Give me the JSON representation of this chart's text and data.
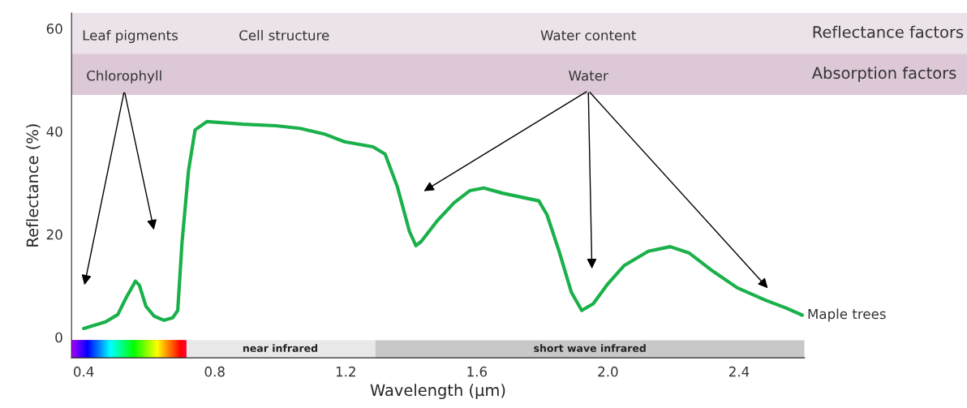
{
  "chart_data": {
    "type": "line",
    "xlabel": "Wavelength (µm)",
    "ylabel": "Reflectance (%)",
    "xlim": [
      0.363,
      2.6
    ],
    "ylim": [
      -4,
      63
    ],
    "xticks": [
      0.4,
      0.8,
      1.2,
      1.6,
      {
        "value": 2.0,
        "label": "2.0"
      },
      2.4
    ],
    "yticks": [
      0,
      20,
      40,
      60
    ],
    "grid": false,
    "legend": false,
    "marker": "none",
    "line_style": "solid",
    "series": [
      {
        "name": "Maple trees",
        "color": "#1ab04a",
        "x": [
          0.4,
          0.467,
          0.504,
          0.529,
          0.558,
          0.57,
          0.59,
          0.615,
          0.645,
          0.672,
          0.687,
          0.7,
          0.72,
          0.74,
          0.776,
          0.887,
          0.986,
          1.06,
          1.134,
          1.196,
          1.283,
          1.32,
          1.357,
          1.394,
          1.414,
          1.43,
          1.48,
          1.53,
          1.579,
          1.621,
          1.678,
          1.789,
          1.814,
          1.851,
          1.888,
          1.92,
          1.955,
          2.0,
          2.049,
          2.123,
          2.19,
          2.247,
          2.321,
          2.395,
          2.481,
          2.543,
          2.593
        ],
        "values": [
          1.7,
          3.0,
          4.4,
          7.6,
          10.9,
          10.1,
          6.0,
          4.1,
          3.3,
          3.8,
          5.2,
          18.3,
          32.4,
          40.3,
          41.9,
          41.4,
          41.1,
          40.6,
          39.5,
          38.0,
          37.0,
          35.6,
          29.3,
          20.6,
          17.8,
          18.6,
          22.7,
          26.1,
          28.5,
          29.0,
          28.0,
          26.5,
          23.8,
          16.7,
          8.8,
          5.2,
          6.5,
          10.4,
          13.9,
          16.7,
          17.6,
          16.4,
          12.8,
          9.6,
          7.2,
          5.7,
          4.3
        ]
      }
    ],
    "bands": [
      {
        "axis": "y",
        "from": 55.1,
        "to": 63,
        "label": "Reflectance factors",
        "color": "#ece2ea"
      },
      {
        "axis": "y",
        "from": 47.1,
        "to": 55.1,
        "label": "Absorption factors",
        "color": "#dcc8d7"
      },
      {
        "axis": "x",
        "from": 0.363,
        "to": 0.71
      },
      {
        "axis": "x",
        "from": 0.71,
        "to": 1.29,
        "label": "near infrared",
        "color": "#e8e8e8"
      },
      {
        "axis": "x",
        "from": 1.29,
        "to": 2.6,
        "label": "short wave infrared",
        "color": "#c8c8c8"
      }
    ],
    "annotations": [
      "Leaf pigments",
      "Cell structure",
      "Water content",
      "Chlorophyll",
      "Water"
    ]
  }
}
